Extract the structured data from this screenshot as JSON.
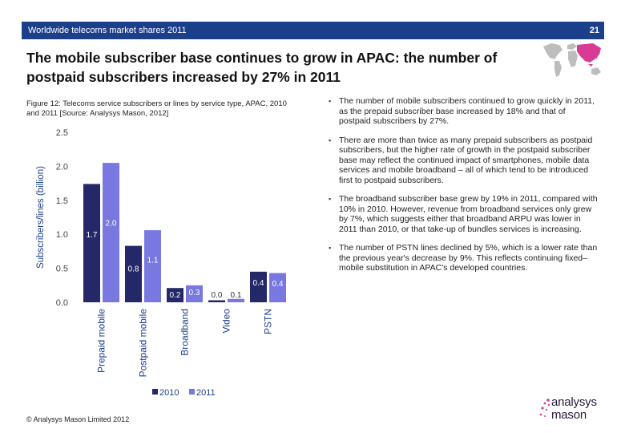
{
  "header": {
    "title": "Worldwide telecoms market shares 2011",
    "page_number": "21"
  },
  "headline": "The mobile subscriber base continues to grow in APAC: the number of postpaid subscribers increased by 27% in 2011",
  "figure_caption": "Figure 12: Telecoms service subscribers or lines by service type, APAC, 2010 and 2011 [Source: Analysys Mason, 2012]",
  "bullets": [
    "The number of mobile subscribers continued to grow quickly in 2011, as the prepaid subscriber base increased by 18% and that of postpaid subscribers by 27%.",
    "There are more than twice as many prepaid subscribers as postpaid subscribers, but the higher rate of growth in the postpaid subscriber base may reflect the continued impact of smartphones, mobile data services and mobile broadband – all of which tend to be introduced first to postpaid subscribers.",
    "The broadband subscriber base grew by 19% in 2011, compared with 10% in 2010. However, revenue from broadband services only grew by 7%, which suggests either that broadband ARPU was lower in 2011 than 2010, or that take-up of bundles services is increasing.",
    "The number of PSTN lines declined by 5%, which is a lower rate than the previous year's decrease by 9%. This reflects continuing fixed–mobile substitution in APAC's developed countries."
  ],
  "footer": "© Analysys Mason Limited 2012",
  "logo": {
    "line1": "analysys",
    "line2": "mason"
  },
  "colors": {
    "bar_2010": "#252868",
    "bar_2011": "#7878e0",
    "header_bg": "#1c3f8c",
    "map_highlight": "#d93a96"
  },
  "chart_data": {
    "type": "bar",
    "title": "",
    "xlabel": "",
    "ylabel": "Subscribers/lines (billion)",
    "categories": [
      "Prepaid mobile",
      "Postpaid mobile",
      "Broadband",
      "Video",
      "PSTN"
    ],
    "series": [
      {
        "name": "2010",
        "values": [
          1.74,
          0.83,
          0.21,
          0.03,
          0.45
        ],
        "labels": [
          "1.7",
          "0.8",
          "0.2",
          "0.0",
          "0.4"
        ]
      },
      {
        "name": "2011",
        "values": [
          2.05,
          1.06,
          0.25,
          0.05,
          0.43
        ],
        "labels": [
          "2.0",
          "1.1",
          "0.3",
          "0.1",
          "0.4"
        ]
      }
    ],
    "yticks": [
      "0.0",
      "0.5",
      "1.0",
      "1.5",
      "2.0",
      "2.5"
    ],
    "ylim": [
      0,
      2.5
    ],
    "legend_position": "bottom",
    "grid": false
  }
}
